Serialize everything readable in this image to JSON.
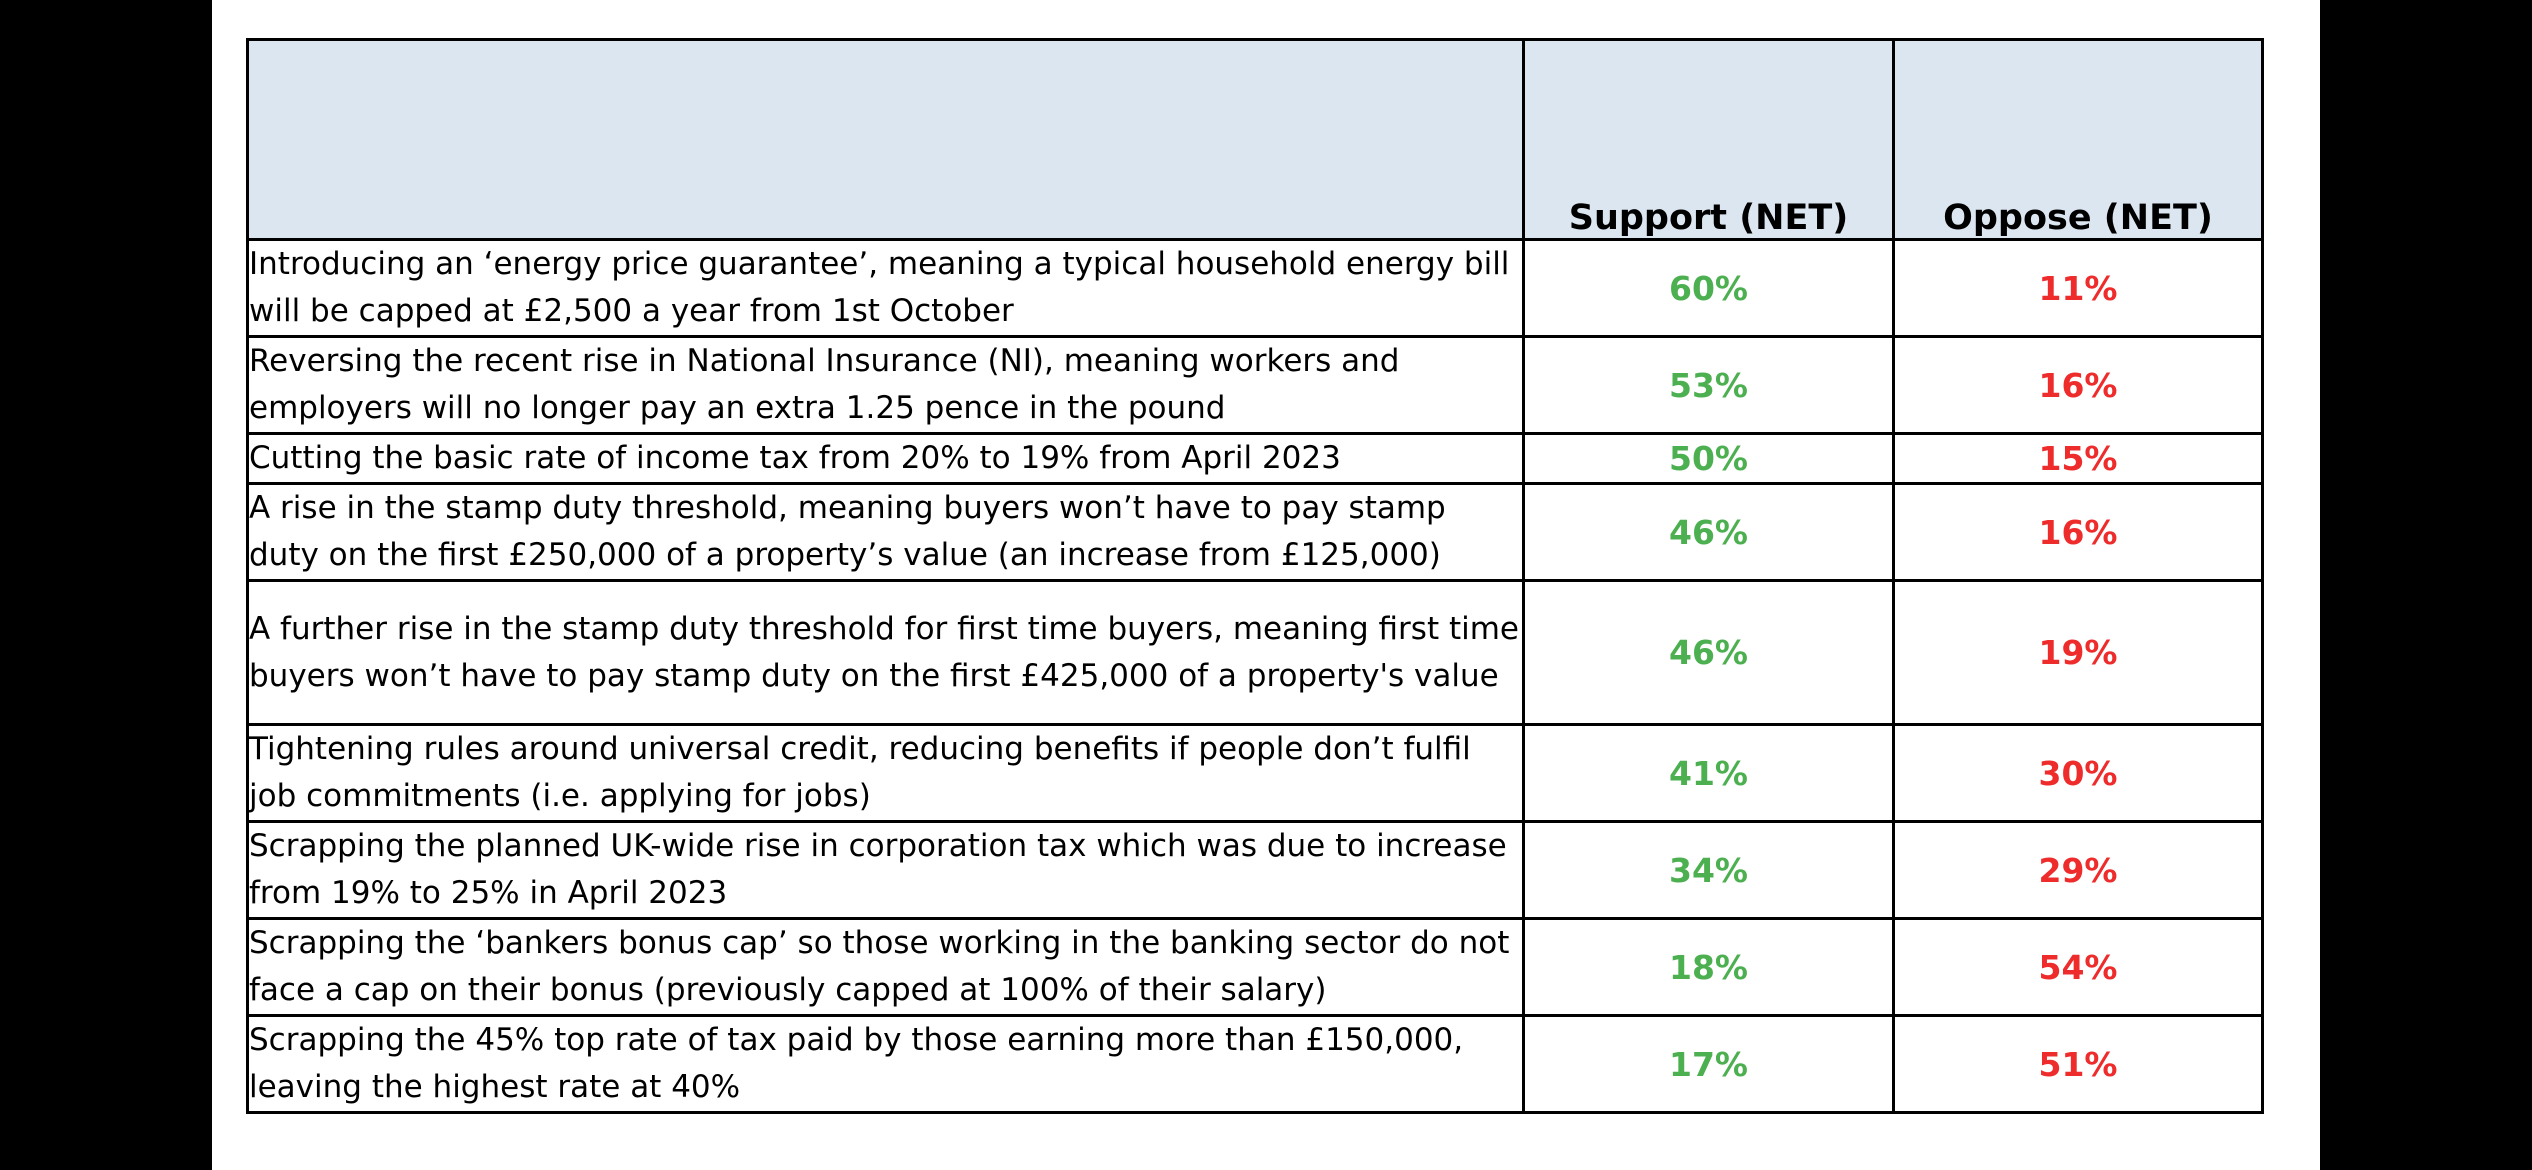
{
  "table": {
    "headers": {
      "item": "",
      "support": "Support (NET)",
      "oppose": "Oppose (NET)"
    },
    "rows": [
      {
        "text": "Introducing an ‘energy price guarantee’, meaning a typical household energy bill will be capped at £2,500 a year from 1st October",
        "support": "60%",
        "oppose": "11%"
      },
      {
        "text": "Reversing the recent rise in National Insurance (NI), meaning workers and employers will no longer pay an extra 1.25 pence in the pound",
        "support": "53%",
        "oppose": "16%"
      },
      {
        "text": "Cutting the basic rate of income tax from 20% to 19% from April 2023",
        "support": "50%",
        "oppose": "15%"
      },
      {
        "text": "A rise in the stamp duty threshold, meaning buyers won’t have to pay stamp duty on the first £250,000 of a property’s value (an increase from £125,000)",
        "support": "46%",
        "oppose": "16%"
      },
      {
        "text": "A further rise in the stamp duty threshold for first time buyers, meaning first time buyers won’t have to pay stamp duty on the first £425,000 of a property's value",
        "support": "46%",
        "oppose": "19%"
      },
      {
        "text": "Tightening rules around universal credit, reducing benefits if people don’t fulfil job commitments (i.e. applying for jobs)",
        "support": "41%",
        "oppose": "30%"
      },
      {
        "text": "Scrapping the planned UK-wide rise in corporation tax which was due to increase from 19% to 25% in April 2023",
        "support": "34%",
        "oppose": "29%"
      },
      {
        "text": "Scrapping the ‘bankers bonus cap’ so those working in the banking sector do not face a cap on their bonus (previously capped at 100% of their salary)",
        "support": "18%",
        "oppose": "54%"
      },
      {
        "text": "Scrapping the 45% top rate of tax paid by those earning more than £150,000, leaving the highest rate at 40%",
        "support": "17%",
        "oppose": "51%"
      }
    ]
  },
  "colors": {
    "support": "#4caf50",
    "oppose": "#ee2c2c",
    "header_bg": "#dce6f1"
  }
}
